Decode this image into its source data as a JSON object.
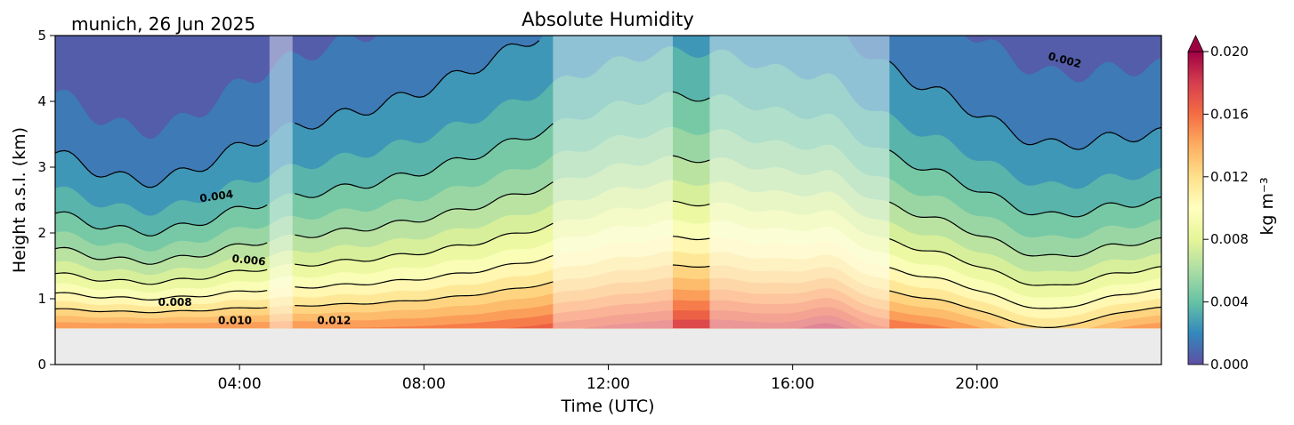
{
  "chart_data": {
    "type": "heatmap",
    "title": "Absolute Humidity",
    "location_date": "munich, 26 Jun 2025",
    "xlabel": "Time (UTC)",
    "ylabel": "Height a.s.l. (km)",
    "x_range_hours": [
      0,
      24
    ],
    "y_range_km": [
      0,
      5
    ],
    "x_ticks": [
      {
        "hour": 4,
        "label": "04:00"
      },
      {
        "hour": 8,
        "label": "08:00"
      },
      {
        "hour": 12,
        "label": "12:00"
      },
      {
        "hour": 16,
        "label": "16:00"
      },
      {
        "hour": 20,
        "label": "20:00"
      }
    ],
    "y_ticks": [
      {
        "km": 0,
        "label": "0"
      },
      {
        "km": 1,
        "label": "1"
      },
      {
        "km": 2,
        "label": "2"
      },
      {
        "km": 3,
        "label": "3"
      },
      {
        "km": 4,
        "label": "4"
      },
      {
        "km": 5,
        "label": "5"
      }
    ],
    "ground_level_km": 0.55,
    "colormap": "Spectral_r",
    "colorbar": {
      "label": "kg m⁻³",
      "range": [
        0.0,
        0.02
      ],
      "extend": "max",
      "ticks": [
        {
          "value": 0.0,
          "label": "0.000"
        },
        {
          "value": 0.004,
          "label": "0.004"
        },
        {
          "value": 0.008,
          "label": "0.008"
        },
        {
          "value": 0.012,
          "label": "0.012"
        },
        {
          "value": 0.016,
          "label": "0.016"
        },
        {
          "value": 0.02,
          "label": "0.020"
        }
      ]
    },
    "masked_intervals_hours": [
      [
        4.65,
        5.15
      ],
      [
        10.8,
        13.4
      ],
      [
        14.2,
        18.1
      ]
    ],
    "contour_labels": [
      {
        "text": "0.002",
        "hour": 21.9,
        "km": 4.62,
        "angle": 15
      },
      {
        "text": "0.004",
        "hour": 3.5,
        "km": 2.55,
        "angle": -8
      },
      {
        "text": "0.006",
        "hour": 4.2,
        "km": 1.58,
        "angle": 6
      },
      {
        "text": "0.008",
        "hour": 2.6,
        "km": 0.94,
        "angle": 0
      },
      {
        "text": "0.010",
        "hour": 3.9,
        "km": 0.66,
        "angle": 0
      },
      {
        "text": "0.012",
        "hour": 6.05,
        "km": 0.66,
        "angle": 0
      }
    ]
  }
}
